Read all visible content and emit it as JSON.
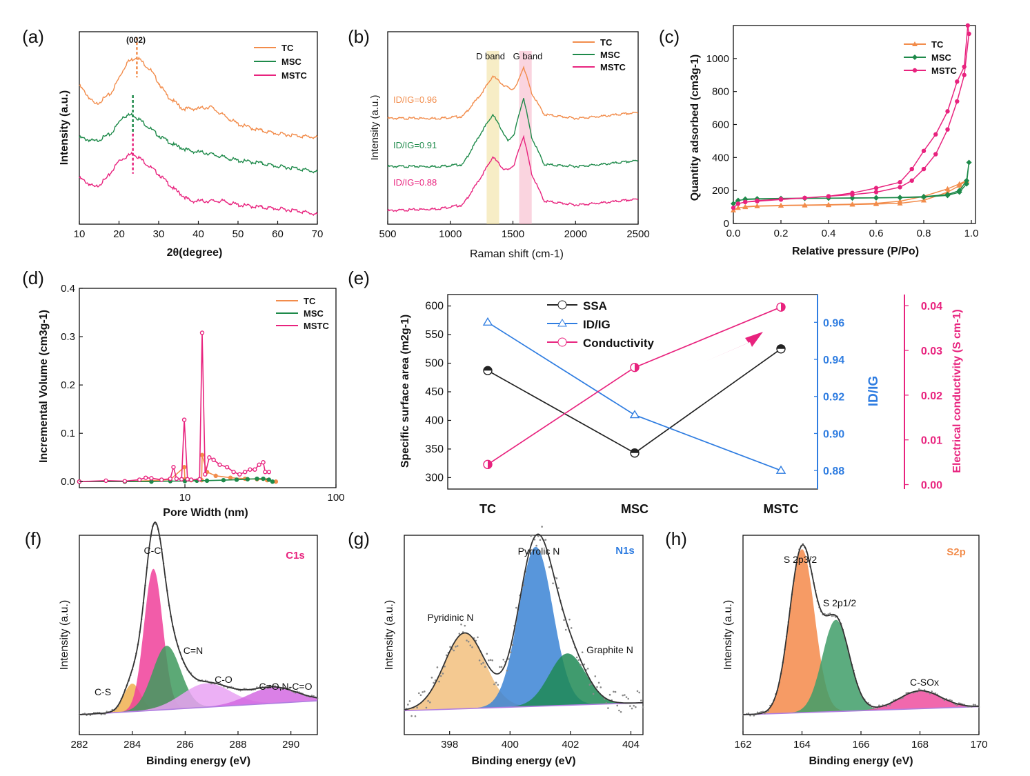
{
  "colors": {
    "TC": "#f28c4b",
    "MSC": "#1e8a4a",
    "MSTC": "#e8237e",
    "blue": "#2f7de1",
    "black": "#222222"
  },
  "chart_data": [
    {
      "id": "a",
      "panel_label": "(a)",
      "type": "line",
      "xlabel": "2θ(degree)",
      "ylabel": "Intensity (a.u.)",
      "xlim": [
        10,
        70
      ],
      "xticks": [
        10,
        20,
        30,
        40,
        50,
        60,
        70
      ],
      "annotation": "(002)",
      "legend": [
        "TC",
        "MSC",
        "MSTC"
      ],
      "legend_position": "top-right",
      "series": [
        {
          "name": "TC",
          "x": [
            10,
            14,
            18,
            22,
            24.5,
            28,
            32,
            36,
            40,
            43,
            46,
            50,
            55,
            60,
            65,
            70
          ],
          "y": [
            0.72,
            0.62,
            0.68,
            0.84,
            0.87,
            0.8,
            0.67,
            0.6,
            0.6,
            0.61,
            0.57,
            0.52,
            0.49,
            0.47,
            0.46,
            0.45
          ]
        },
        {
          "name": "MSC",
          "x": [
            10,
            14,
            18,
            21,
            23.5,
            26,
            30,
            34,
            38,
            42,
            46,
            50,
            55,
            60,
            65,
            70
          ],
          "y": [
            0.45,
            0.43,
            0.47,
            0.56,
            0.57,
            0.53,
            0.46,
            0.41,
            0.38,
            0.37,
            0.35,
            0.33,
            0.32,
            0.3,
            0.29,
            0.27
          ]
        },
        {
          "name": "MSTC",
          "x": [
            10,
            14,
            17,
            20,
            23.5,
            26,
            30,
            34,
            38,
            42,
            46,
            50,
            55,
            60,
            65,
            70
          ],
          "y": [
            0.24,
            0.19,
            0.24,
            0.33,
            0.37,
            0.33,
            0.26,
            0.18,
            0.12,
            0.12,
            0.12,
            0.1,
            0.09,
            0.08,
            0.07,
            0.05
          ]
        }
      ],
      "peak_markers": [
        {
          "series": "TC",
          "x": 24.5
        },
        {
          "series": "MSC",
          "x": 23.5
        },
        {
          "series": "MSTC",
          "x": 23.5
        }
      ]
    },
    {
      "id": "b",
      "panel_label": "(b)",
      "type": "line",
      "xlabel": "Raman shift (cm-1)",
      "ylabel": "Intensity (a.u.)",
      "xlim": [
        500,
        2500
      ],
      "xticks": [
        500,
        1000,
        1500,
        2000,
        2500
      ],
      "band_labels": [
        "D band",
        "G band"
      ],
      "bands": [
        {
          "x": [
            1290,
            1390
          ]
        },
        {
          "x": [
            1550,
            1650
          ]
        }
      ],
      "legend": [
        "TC",
        "MSC",
        "MSTC"
      ],
      "legend_position": "top-right",
      "ratio_labels": [
        {
          "series": "TC",
          "text": "ID/IG=0.96"
        },
        {
          "series": "MSC",
          "text": "ID/IG=0.91"
        },
        {
          "series": "MSTC",
          "text": "ID/IG=0.88"
        }
      ],
      "series": [
        {
          "name": "TC",
          "x": [
            500,
            900,
            1100,
            1250,
            1340,
            1430,
            1490,
            1530,
            1585,
            1650,
            1750,
            2000,
            2200,
            2500
          ],
          "y": [
            0.55,
            0.55,
            0.56,
            0.68,
            0.77,
            0.72,
            0.7,
            0.72,
            0.82,
            0.68,
            0.57,
            0.55,
            0.56,
            0.58
          ]
        },
        {
          "name": "MSC",
          "x": [
            500,
            900,
            1100,
            1250,
            1340,
            1420,
            1460,
            1510,
            1585,
            1650,
            1750,
            2000,
            2200,
            2500
          ],
          "y": [
            0.3,
            0.3,
            0.31,
            0.48,
            0.57,
            0.48,
            0.43,
            0.47,
            0.66,
            0.45,
            0.31,
            0.3,
            0.31,
            0.33
          ]
        },
        {
          "name": "MSTC",
          "x": [
            500,
            900,
            1100,
            1250,
            1340,
            1420,
            1460,
            1510,
            1585,
            1650,
            1750,
            2000,
            2200,
            2500
          ],
          "y": [
            0.07,
            0.08,
            0.1,
            0.25,
            0.35,
            0.29,
            0.28,
            0.31,
            0.46,
            0.26,
            0.12,
            0.1,
            0.11,
            0.13
          ]
        }
      ]
    },
    {
      "id": "c",
      "panel_label": "(c)",
      "type": "line",
      "xlabel": "Relative pressure (P/Po)",
      "ylabel": "Quantity adsorbed (cm3g-1)",
      "xlim": [
        0,
        1.0
      ],
      "ylim": [
        0,
        1200
      ],
      "xticks": [
        0.0,
        0.2,
        0.4,
        0.6,
        0.8,
        1.0
      ],
      "yticks": [
        0,
        200,
        400,
        600,
        800,
        1000
      ],
      "legend": [
        "TC",
        "MSC",
        "MSTC"
      ],
      "legend_position": "top-right",
      "series": [
        {
          "name": "TC",
          "x": [
            0,
            0.02,
            0.05,
            0.1,
            0.2,
            0.3,
            0.4,
            0.5,
            0.6,
            0.7,
            0.8,
            0.9,
            0.95,
            0.98,
            0.95,
            0.9,
            0.8,
            0.7,
            0.6,
            0.5,
            0.4,
            0.3,
            0.2,
            0.1,
            0.05
          ],
          "y": [
            80,
            95,
            100,
            105,
            108,
            110,
            112,
            115,
            118,
            122,
            140,
            190,
            230,
            260,
            240,
            210,
            165,
            135,
            122,
            117,
            114,
            112,
            110,
            106,
            102
          ]
        },
        {
          "name": "MSC",
          "x": [
            0,
            0.02,
            0.05,
            0.1,
            0.2,
            0.3,
            0.4,
            0.5,
            0.6,
            0.7,
            0.8,
            0.9,
            0.95,
            0.98,
            0.99,
            0.98,
            0.95,
            0.9,
            0.8,
            0.7,
            0.6,
            0.5,
            0.4,
            0.3,
            0.2,
            0.1,
            0.05
          ],
          "y": [
            120,
            140,
            145,
            148,
            150,
            152,
            153,
            154,
            155,
            157,
            160,
            170,
            190,
            240,
            370,
            260,
            200,
            175,
            163,
            158,
            156,
            155,
            154,
            153,
            152,
            150,
            148
          ]
        },
        {
          "name": "MSTC",
          "x": [
            0,
            0.02,
            0.05,
            0.1,
            0.2,
            0.3,
            0.4,
            0.5,
            0.6,
            0.7,
            0.75,
            0.8,
            0.85,
            0.9,
            0.94,
            0.97,
            0.985,
            0.99,
            0.97,
            0.94,
            0.9,
            0.85,
            0.8,
            0.75,
            0.7,
            0.6,
            0.5,
            0.4,
            0.3,
            0.2,
            0.1,
            0.05
          ],
          "y": [
            95,
            120,
            130,
            135,
            145,
            155,
            165,
            185,
            215,
            250,
            330,
            440,
            540,
            680,
            860,
            950,
            1200,
            1150,
            900,
            740,
            570,
            420,
            330,
            260,
            220,
            190,
            175,
            165,
            155,
            148,
            138,
            130
          ]
        }
      ]
    },
    {
      "id": "d",
      "panel_label": "(d)",
      "type": "line",
      "xscale": "log",
      "xlabel": "Pore Width (nm)",
      "ylabel": "Incremental Volume (cm3g-1)",
      "xlim": [
        2,
        100
      ],
      "ylim": [
        0,
        0.4
      ],
      "xticks": [
        10,
        100
      ],
      "yticks": [
        0.0,
        0.1,
        0.2,
        0.3,
        0.4
      ],
      "legend": [
        "TC",
        "MSC",
        "MSTC"
      ],
      "legend_position": "top-right",
      "series": [
        {
          "name": "TC",
          "x": [
            2,
            4,
            6,
            8,
            9.9,
            10,
            11,
            12.9,
            13,
            14,
            16,
            20,
            25,
            30,
            35,
            40
          ],
          "y": [
            0,
            0,
            0.002,
            0.004,
            0.03,
            0.005,
            0.003,
            0.003,
            0.055,
            0.02,
            0.012,
            0.008,
            0.006,
            0.005,
            0.003,
            0
          ]
        },
        {
          "name": "MSC",
          "x": [
            2,
            4,
            6,
            8,
            10,
            12,
            14,
            18,
            22,
            26,
            30,
            33,
            36,
            38
          ],
          "y": [
            0,
            0,
            0,
            0.001,
            0.001,
            0.002,
            0.002,
            0.003,
            0.004,
            0.005,
            0.006,
            0.006,
            0.004,
            0
          ]
        },
        {
          "name": "MSTC",
          "x": [
            2,
            3,
            4,
            5,
            5.5,
            6,
            7,
            8,
            8.4,
            8.8,
            9.5,
            9.9,
            10.4,
            11,
            12.5,
            13,
            13.6,
            14.5,
            15.5,
            17,
            19,
            21,
            23,
            25,
            27,
            29,
            31,
            33,
            34,
            36
          ],
          "y": [
            0,
            0.002,
            0.001,
            0.004,
            0.008,
            0.007,
            0.004,
            0.006,
            0.03,
            0.006,
            0.005,
            0.128,
            0.005,
            0.004,
            0.005,
            0.308,
            0.015,
            0.05,
            0.045,
            0.035,
            0.03,
            0.02,
            0.015,
            0.02,
            0.025,
            0.025,
            0.035,
            0.04,
            0.02,
            0.02
          ]
        }
      ]
    },
    {
      "id": "e",
      "panel_label": "(e)",
      "type": "line",
      "categories": [
        "TC",
        "MSC",
        "MSTC"
      ],
      "ylabel": "Specific surface area (m2g-1)",
      "ylim": [
        280,
        620
      ],
      "yticks": [
        300,
        350,
        400,
        450,
        500,
        550,
        600
      ],
      "y2label": "ID/IG",
      "y2lim": [
        0.87,
        0.975
      ],
      "y2ticks": [
        0.88,
        0.9,
        0.92,
        0.94,
        0.96
      ],
      "y3label": "Electrical conductivity (S cm-1)",
      "y3lim": [
        -0.001,
        0.0425
      ],
      "y3ticks": [
        0.0,
        0.01,
        0.02,
        0.03,
        0.04
      ],
      "legend": [
        "SSA",
        "ID/IG",
        "Conductivity"
      ],
      "legend_position": "top-left",
      "series": [
        {
          "name": "SSA",
          "axis": "left",
          "values": [
            487,
            343,
            525
          ]
        },
        {
          "name": "ID/IG",
          "axis": "right",
          "values": [
            0.96,
            0.91,
            0.88
          ]
        },
        {
          "name": "Conductivity",
          "axis": "right2",
          "values": [
            0.0045,
            0.0262,
            0.0397
          ]
        }
      ]
    },
    {
      "id": "f",
      "panel_label": "(f)",
      "type": "area",
      "xlabel": "Binding energy (eV)",
      "ylabel": "Intensity (a.u.)",
      "xlim": [
        282,
        291
      ],
      "xticks": [
        282,
        284,
        286,
        288,
        290
      ],
      "title": "C1s",
      "peak_labels": [
        "C-C",
        "C=N",
        "C-O",
        "C-S",
        "C=O,N-C=O"
      ],
      "series": [
        {
          "name": "C-S",
          "center": 284.0,
          "height": 0.14,
          "width": 0.45
        },
        {
          "name": "C-C",
          "center": 284.8,
          "height": 0.71,
          "width": 0.5
        },
        {
          "name": "C=N",
          "center": 285.3,
          "height": 0.32,
          "width": 0.75
        },
        {
          "name": "C-O",
          "center": 286.8,
          "height": 0.12,
          "width": 1.3
        },
        {
          "name": "C=O,N-C=O",
          "center": 289.3,
          "height": 0.08,
          "width": 1.3
        }
      ]
    },
    {
      "id": "g",
      "panel_label": "(g)",
      "type": "area",
      "xlabel": "Binding energy (eV)",
      "ylabel": "Intensity (a.u.)",
      "xlim": [
        396.5,
        404.4
      ],
      "xticks": [
        398,
        400,
        402,
        404
      ],
      "title": "N1s",
      "peak_labels": [
        "Pyridinic N",
        "Pyrrolic N",
        "Graphite N"
      ],
      "series": [
        {
          "name": "Pyridinic N",
          "center": 398.5,
          "height": 0.38,
          "width": 0.95
        },
        {
          "name": "Pyrrolic N",
          "center": 400.85,
          "height": 0.8,
          "width": 0.8
        },
        {
          "name": "Graphite N",
          "center": 401.9,
          "height": 0.26,
          "width": 0.85
        }
      ]
    },
    {
      "id": "h",
      "panel_label": "(h)",
      "type": "area",
      "xlabel": "Binding energy (eV)",
      "ylabel": "Intensity (a.u.)",
      "xlim": [
        162,
        170
      ],
      "xticks": [
        162,
        164,
        166,
        168,
        170
      ],
      "title": "S2p",
      "peak_labels": [
        "S 2p3/2",
        "S 2p1/2",
        "C-SOx"
      ],
      "series": [
        {
          "name": "S 2p3/2",
          "center": 164.0,
          "height": 0.82,
          "width": 0.6
        },
        {
          "name": "S 2p1/2",
          "center": 165.15,
          "height": 0.46,
          "width": 0.65
        },
        {
          "name": "C-SOx",
          "center": 168.0,
          "height": 0.09,
          "width": 1.0
        }
      ]
    }
  ]
}
